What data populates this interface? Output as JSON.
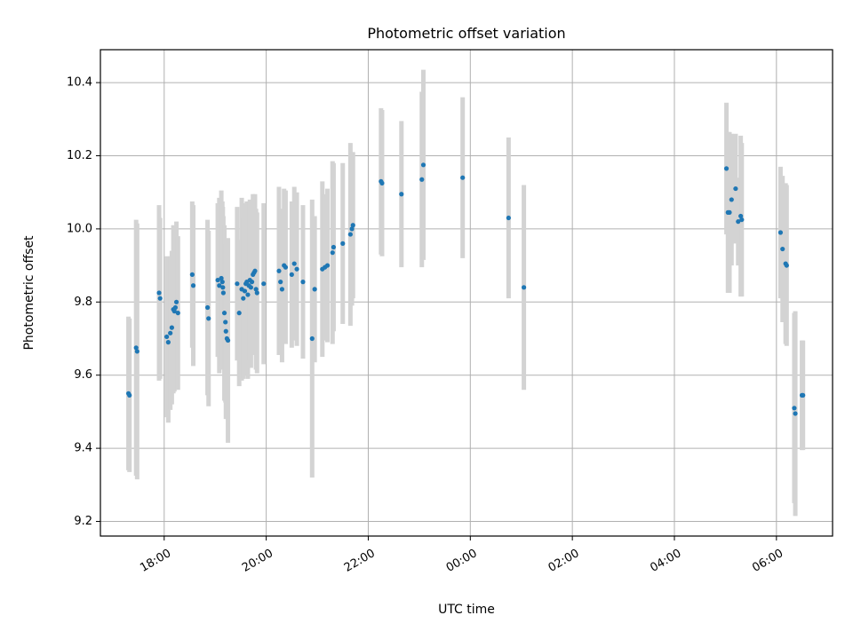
{
  "chart_data": {
    "type": "scatter",
    "title": "Photometric offset variation",
    "xlabel": "UTC time",
    "ylabel": "Photometric offset",
    "x_unit": "hours",
    "xlim": [
      16.75,
      31.1
    ],
    "ylim": [
      9.16,
      10.49
    ],
    "grid": true,
    "x_ticks": [
      {
        "value": 18,
        "label": "18:00"
      },
      {
        "value": 20,
        "label": "20:00"
      },
      {
        "value": 22,
        "label": "22:00"
      },
      {
        "value": 24,
        "label": "00:00"
      },
      {
        "value": 26,
        "label": "02:00"
      },
      {
        "value": 28,
        "label": "04:00"
      },
      {
        "value": 30,
        "label": "06:00"
      }
    ],
    "y_ticks": [
      {
        "value": 9.2,
        "label": "9.2"
      },
      {
        "value": 9.4,
        "label": "9.4"
      },
      {
        "value": 9.6,
        "label": "9.6"
      },
      {
        "value": 9.8,
        "label": "9.8"
      },
      {
        "value": 10.0,
        "label": "10.0"
      },
      {
        "value": 10.2,
        "label": "10.2"
      },
      {
        "value": 10.4,
        "label": "10.4"
      }
    ],
    "marker_color": "#1f77b4",
    "errorbar_color": "#d3d3d3",
    "points": [
      [
        17.3,
        9.55,
        0.21
      ],
      [
        17.32,
        9.545,
        0.21
      ],
      [
        17.45,
        9.675,
        0.35
      ],
      [
        17.47,
        9.665,
        0.35
      ],
      [
        17.9,
        9.825,
        0.24
      ],
      [
        17.92,
        9.81,
        0.22
      ],
      [
        18.05,
        9.705,
        0.22
      ],
      [
        18.08,
        9.69,
        0.22
      ],
      [
        18.12,
        9.715,
        0.21
      ],
      [
        18.15,
        9.73,
        0.21
      ],
      [
        18.18,
        9.78,
        0.23
      ],
      [
        18.2,
        9.775,
        0.22
      ],
      [
        18.22,
        9.785,
        0.22
      ],
      [
        18.24,
        9.8,
        0.22
      ],
      [
        18.27,
        9.77,
        0.21
      ],
      [
        18.55,
        9.875,
        0.2
      ],
      [
        18.57,
        9.845,
        0.22
      ],
      [
        18.85,
        9.785,
        0.24
      ],
      [
        18.87,
        9.755,
        0.24
      ],
      [
        19.05,
        9.86,
        0.21
      ],
      [
        19.08,
        9.845,
        0.24
      ],
      [
        19.12,
        9.865,
        0.24
      ],
      [
        19.14,
        9.855,
        0.22
      ],
      [
        19.15,
        9.84,
        0.22
      ],
      [
        19.16,
        9.825,
        0.21
      ],
      [
        19.18,
        9.77,
        0.24
      ],
      [
        19.2,
        9.745,
        0.22
      ],
      [
        19.21,
        9.72,
        0.24
      ],
      [
        19.23,
        9.7,
        0.22
      ],
      [
        19.25,
        9.695,
        0.28
      ],
      [
        19.43,
        9.85,
        0.21
      ],
      [
        19.47,
        9.77,
        0.2
      ],
      [
        19.52,
        9.835,
        0.25
      ],
      [
        19.55,
        9.81,
        0.22
      ],
      [
        19.58,
        9.83,
        0.23
      ],
      [
        19.6,
        9.85,
        0.22
      ],
      [
        19.62,
        9.855,
        0.22
      ],
      [
        19.64,
        9.82,
        0.23
      ],
      [
        19.66,
        9.845,
        0.22
      ],
      [
        19.68,
        9.86,
        0.22
      ],
      [
        19.7,
        9.84,
        0.22
      ],
      [
        19.72,
        9.855,
        0.2
      ],
      [
        19.74,
        9.875,
        0.22
      ],
      [
        19.76,
        9.88,
        0.21
      ],
      [
        19.78,
        9.885,
        0.21
      ],
      [
        19.8,
        9.835,
        0.22
      ],
      [
        19.82,
        9.825,
        0.22
      ],
      [
        19.95,
        9.85,
        0.22
      ],
      [
        20.25,
        9.885,
        0.23
      ],
      [
        20.28,
        9.855,
        0.2
      ],
      [
        20.31,
        9.835,
        0.2
      ],
      [
        20.35,
        9.9,
        0.21
      ],
      [
        20.38,
        9.895,
        0.21
      ],
      [
        20.5,
        9.875,
        0.2
      ],
      [
        20.55,
        9.905,
        0.21
      ],
      [
        20.6,
        9.89,
        0.21
      ],
      [
        20.72,
        9.855,
        0.21
      ],
      [
        20.9,
        9.7,
        0.38
      ],
      [
        20.95,
        9.835,
        0.2
      ],
      [
        21.1,
        9.89,
        0.24
      ],
      [
        21.15,
        9.895,
        0.2
      ],
      [
        21.2,
        9.9,
        0.21
      ],
      [
        21.3,
        9.935,
        0.25
      ],
      [
        21.32,
        9.95,
        0.23
      ],
      [
        21.5,
        9.96,
        0.22
      ],
      [
        21.65,
        9.985,
        0.25
      ],
      [
        21.68,
        10.0,
        0.21
      ],
      [
        21.7,
        10.01,
        0.2
      ],
      [
        22.25,
        10.13,
        0.2
      ],
      [
        22.27,
        10.125,
        0.2
      ],
      [
        22.65,
        10.095,
        0.2
      ],
      [
        23.05,
        10.135,
        0.24
      ],
      [
        23.08,
        10.175,
        0.26
      ],
      [
        23.85,
        10.14,
        0.22
      ],
      [
        24.75,
        10.03,
        0.22
      ],
      [
        25.05,
        9.84,
        0.28
      ],
      [
        29.02,
        10.165,
        0.18
      ],
      [
        29.05,
        10.045,
        0.22
      ],
      [
        29.08,
        10.045,
        0.22
      ],
      [
        29.12,
        10.08,
        0.18
      ],
      [
        29.2,
        10.11,
        0.15
      ],
      [
        29.25,
        10.02,
        0.12
      ],
      [
        29.3,
        10.035,
        0.22
      ],
      [
        29.32,
        10.025,
        0.21
      ],
      [
        30.08,
        9.99,
        0.18
      ],
      [
        30.12,
        9.945,
        0.2
      ],
      [
        30.18,
        9.905,
        0.22
      ],
      [
        30.2,
        9.9,
        0.22
      ],
      [
        30.35,
        9.51,
        0.26
      ],
      [
        30.37,
        9.495,
        0.28
      ],
      [
        30.5,
        9.545,
        0.15
      ],
      [
        30.52,
        9.545,
        0.15
      ]
    ]
  }
}
